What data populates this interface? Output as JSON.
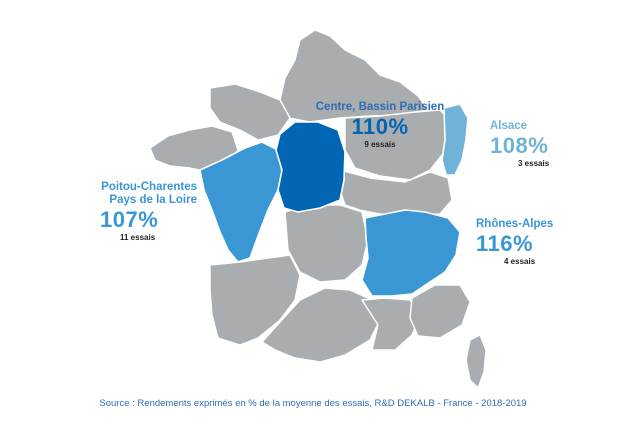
{
  "colors": {
    "base_region": "#a9adb0",
    "border": "#ffffff",
    "centre": "#0066b3",
    "poitou": "#3a97d4",
    "rhone": "#3a97d4",
    "alsace": "#6fb3d8",
    "source_text": "#2f6db5"
  },
  "regions": [
    {
      "id": "centre",
      "name": "Centre, Bassin Parisien",
      "percent": "110%",
      "trials": "9 essais",
      "color": "#0066b3"
    },
    {
      "id": "alsace",
      "name": "Alsace",
      "percent": "108%",
      "trials": "3 essais",
      "color": "#6fb3d8"
    },
    {
      "id": "poitou",
      "name": "Poitou-Charentes\nPays de la Loire",
      "name_line1": "Poitou-Charentes",
      "name_line2": "Pays de la Loire",
      "percent": "107%",
      "trials": "11 essais",
      "color": "#3a97d4"
    },
    {
      "id": "rhone",
      "name": "Rhônes-Alpes",
      "percent": "116%",
      "trials": "4 essais",
      "color": "#3a97d4"
    }
  ],
  "source": "Source : Rendements exprimés en % de la moyenne des essais, R&D DEKALB - France - 2018-2019"
}
